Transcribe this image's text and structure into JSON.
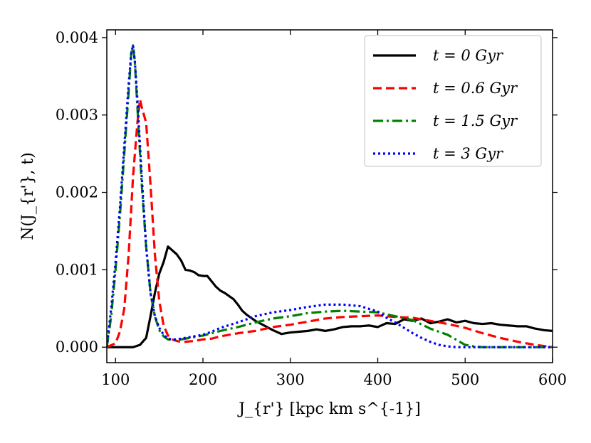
{
  "chart_data": {
    "type": "line",
    "title": "",
    "xlabel": "J_{r'} [kpc km s^{-1}]",
    "ylabel": "N(J_{r'}, t)",
    "xlim": [
      90,
      600
    ],
    "ylim": [
      -0.0002,
      0.0041
    ],
    "xticks": [
      100,
      200,
      300,
      400,
      500,
      600
    ],
    "xtick_labels": [
      "100",
      "200",
      "300",
      "400",
      "500",
      "600"
    ],
    "yticks": [
      0.0,
      0.001,
      0.002,
      0.003,
      0.004
    ],
    "ytick_labels": [
      "0.000",
      "0.001",
      "0.002",
      "0.003",
      "0.004"
    ],
    "grid": false,
    "legend_position": "top-right",
    "series": [
      {
        "name": "t = 0 Gyr",
        "color": "#000000",
        "dash": "solid",
        "x": [
          90,
          100,
          110,
          120,
          128,
          135,
          140,
          145,
          150,
          155,
          160,
          165,
          170,
          175,
          180,
          185,
          190,
          195,
          200,
          205,
          210,
          215,
          220,
          225,
          230,
          235,
          240,
          245,
          250,
          255,
          260,
          270,
          280,
          290,
          300,
          310,
          320,
          330,
          340,
          350,
          360,
          370,
          380,
          390,
          400,
          410,
          420,
          430,
          440,
          450,
          460,
          470,
          480,
          490,
          500,
          510,
          520,
          530,
          540,
          550,
          560,
          570,
          580,
          590,
          600
        ],
        "y": [
          0.0,
          0.0,
          0.0,
          0.0,
          3e-05,
          0.00012,
          0.0004,
          0.0007,
          0.00095,
          0.0011,
          0.0013,
          0.00125,
          0.0012,
          0.00112,
          0.001,
          0.00099,
          0.00097,
          0.00093,
          0.00092,
          0.00092,
          0.00085,
          0.00078,
          0.00073,
          0.0007,
          0.00066,
          0.00062,
          0.00055,
          0.00047,
          0.00042,
          0.00038,
          0.00034,
          0.00028,
          0.00022,
          0.00017,
          0.00019,
          0.0002,
          0.00021,
          0.00023,
          0.00021,
          0.00023,
          0.00026,
          0.00027,
          0.00027,
          0.00028,
          0.00026,
          0.00031,
          0.0003,
          0.00036,
          0.00034,
          0.00037,
          0.00031,
          0.00033,
          0.00036,
          0.00032,
          0.00034,
          0.00031,
          0.0003,
          0.00031,
          0.00029,
          0.00028,
          0.00027,
          0.00027,
          0.00024,
          0.00022,
          0.00021
        ]
      },
      {
        "name": "t = 0.6 Gyr",
        "color": "#ff0000",
        "dash": "dashed",
        "x": [
          90,
          100,
          105,
          110,
          115,
          120,
          125,
          128,
          130,
          135,
          140,
          145,
          150,
          155,
          160,
          165,
          170,
          175,
          180,
          190,
          200,
          210,
          220,
          240,
          260,
          280,
          300,
          320,
          340,
          360,
          380,
          400,
          420,
          440,
          460,
          480,
          500,
          520,
          540,
          560,
          580,
          600
        ],
        "y": [
          0.0,
          5e-05,
          0.0002,
          0.0005,
          0.0012,
          0.0022,
          0.0029,
          0.0032,
          0.0031,
          0.0029,
          0.0021,
          0.0012,
          0.0006,
          0.00028,
          0.00015,
          0.0001,
          8e-05,
          7e-05,
          7e-05,
          8e-05,
          0.0001,
          0.00011,
          0.00014,
          0.00018,
          0.00021,
          0.00026,
          0.00029,
          0.00033,
          0.00037,
          0.00039,
          0.0004,
          0.00041,
          0.00039,
          0.00038,
          0.00034,
          0.0003,
          0.00025,
          0.00018,
          0.00012,
          7e-05,
          3e-05,
          0.0
        ]
      },
      {
        "name": "t = 1.5 Gyr",
        "color": "#008000",
        "dash": "dashdot",
        "x": [
          90,
          95,
          100,
          105,
          110,
          115,
          118,
          120,
          122,
          125,
          130,
          135,
          140,
          145,
          150,
          155,
          160,
          165,
          170,
          175,
          180,
          190,
          200,
          210,
          220,
          240,
          260,
          280,
          300,
          320,
          340,
          360,
          380,
          400,
          420,
          440,
          460,
          480,
          500,
          510,
          520,
          540,
          560,
          580,
          600
        ],
        "y": [
          0.0,
          0.0004,
          0.001,
          0.0017,
          0.0025,
          0.0033,
          0.0038,
          0.0039,
          0.0037,
          0.0031,
          0.0021,
          0.0013,
          0.0007,
          0.0004,
          0.00022,
          0.00014,
          0.0001,
          9e-05,
          9e-05,
          0.0001,
          0.00011,
          0.00013,
          0.00015,
          0.00018,
          0.00021,
          0.00026,
          0.00032,
          0.00037,
          0.0004,
          0.00044,
          0.00046,
          0.00047,
          0.00046,
          0.00045,
          0.0004,
          0.00035,
          0.00024,
          0.00016,
          3e-05,
          1e-05,
          0.0,
          0.0,
          0.0,
          0.0,
          0.0
        ]
      },
      {
        "name": "t = 3 Gyr",
        "color": "#0000ff",
        "dash": "dotted",
        "x": [
          90,
          95,
          100,
          105,
          110,
          115,
          118,
          120,
          122,
          125,
          130,
          135,
          140,
          145,
          150,
          155,
          160,
          165,
          170,
          175,
          180,
          190,
          200,
          210,
          220,
          240,
          260,
          280,
          300,
          320,
          340,
          360,
          380,
          400,
          410,
          420,
          430,
          440,
          450,
          460,
          470,
          480,
          490,
          500,
          520,
          540,
          560,
          580,
          600
        ],
        "y": [
          0.0,
          0.0005,
          0.0011,
          0.0018,
          0.0026,
          0.0034,
          0.0038,
          0.0039,
          0.0037,
          0.0032,
          0.0022,
          0.0013,
          0.0007,
          0.0004,
          0.00025,
          0.00016,
          0.00011,
          0.0001,
          0.0001,
          0.00011,
          0.00012,
          0.00014,
          0.00016,
          0.0002,
          0.00025,
          0.00032,
          0.0004,
          0.00045,
          0.00048,
          0.00052,
          0.00055,
          0.00055,
          0.00053,
          0.00046,
          0.00038,
          0.00032,
          0.00025,
          0.00018,
          0.00012,
          7e-05,
          3e-05,
          1e-05,
          0.0,
          0.0,
          0.0,
          0.0,
          0.0,
          0.0,
          0.0
        ]
      }
    ]
  }
}
